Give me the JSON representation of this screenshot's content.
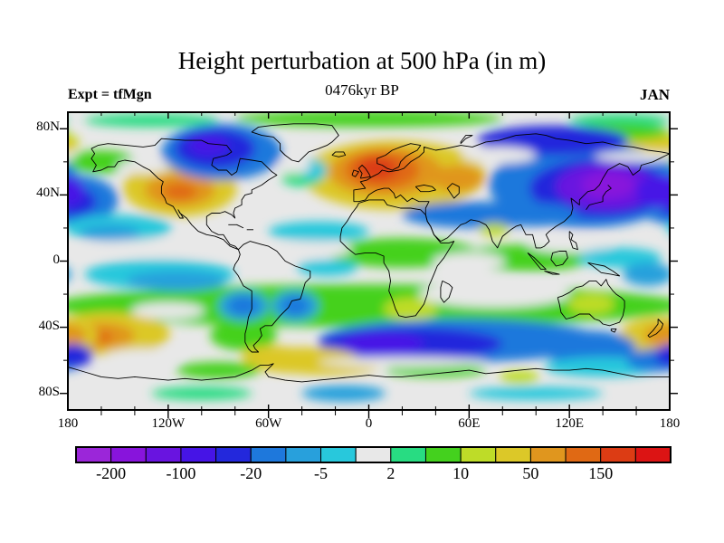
{
  "header": {
    "title": "Height perturbation at 500 hPa (in m)",
    "subtitle": "0476kyr BP",
    "experiment_label": "Expt = tfMgn",
    "month_label": "JAN"
  },
  "chart_data": {
    "type": "filled_contour_map",
    "title": "Height perturbation at 500 hPa (in m)",
    "subtitle": "0476kyr BP",
    "experiment": "tfMgn",
    "month": "JAN",
    "variable": "Geopotential height perturbation at 500 hPa",
    "units": "m",
    "projection": {
      "kind": "equirectangular",
      "lon_range": [
        -180,
        180
      ],
      "lat_range": [
        -90,
        90
      ],
      "center_lon": 0
    },
    "contour_levels": [
      -200,
      -150,
      -100,
      -50,
      -20,
      -10,
      -5,
      -2,
      2,
      5,
      10,
      20,
      50,
      100,
      150,
      200
    ],
    "palette": [
      "#9B26D9",
      "#8814DC",
      "#6914E0",
      "#4614E6",
      "#2328DC",
      "#1E78DC",
      "#28A0DC",
      "#28C8DC",
      "#E8E8E8",
      "#28DC82",
      "#44D11E",
      "#BEDC28",
      "#DCC828",
      "#E0961E",
      "#E06914",
      "#DC3C14",
      "#DC1414"
    ],
    "colorbar_labels": [
      "-200",
      "-100",
      "-20",
      "-5",
      "2",
      "10",
      "50",
      "150"
    ],
    "colorbar_label_boundary_indices": [
      1,
      3,
      5,
      7,
      9,
      11,
      13,
      15
    ],
    "x_axis": {
      "major_tick_lons": [
        -180,
        -120,
        -60,
        0,
        60,
        120,
        180
      ],
      "labels": [
        "180",
        "120W",
        "60W",
        "0",
        "60E",
        "120E",
        "180"
      ],
      "minor_step_deg": 20
    },
    "y_axis": {
      "major_tick_lats": [
        80,
        40,
        0,
        -40,
        -80
      ],
      "labels": [
        "80N",
        "40N",
        "0",
        "40S",
        "80S"
      ],
      "minor_step_deg": 20
    },
    "frame_color": "#000000",
    "background_fill": "#E8E8E8",
    "anomaly_features": [
      [
        0,
        86,
        80,
        5,
        10
      ],
      [
        -130,
        85,
        40,
        4,
        9
      ],
      [
        150,
        85,
        30,
        4,
        9
      ],
      [
        0,
        -27,
        190,
        13,
        10
      ],
      [
        -75,
        -45,
        20,
        9,
        10
      ],
      [
        20,
        5,
        45,
        9,
        10
      ],
      [
        95,
        2,
        40,
        8,
        10
      ],
      [
        -113,
        44,
        34,
        17,
        12
      ],
      [
        -113,
        43,
        21,
        10,
        13
      ],
      [
        -113,
        42,
        10,
        5,
        14
      ],
      [
        15,
        52,
        55,
        21,
        12
      ],
      [
        10,
        54,
        34,
        15,
        13
      ],
      [
        8,
        55,
        22,
        11,
        14
      ],
      [
        5,
        56,
        12,
        7,
        15
      ],
      [
        53,
        50,
        16,
        8,
        13
      ],
      [
        165,
        72,
        22,
        7,
        11
      ],
      [
        170,
        70,
        15,
        6,
        12
      ],
      [
        150,
        78,
        30,
        5,
        10
      ],
      [
        -88,
        66,
        36,
        17,
        5
      ],
      [
        -92,
        68,
        24,
        12,
        4
      ],
      [
        -96,
        70,
        12,
        6,
        3
      ],
      [
        -176,
        37,
        26,
        15,
        5
      ],
      [
        -178,
        36,
        15,
        9,
        4
      ],
      [
        130,
        46,
        58,
        26,
        5
      ],
      [
        138,
        44,
        42,
        18,
        4
      ],
      [
        142,
        45,
        30,
        14,
        2
      ],
      [
        143,
        46,
        16,
        8,
        1
      ],
      [
        175,
        42,
        15,
        10,
        3
      ],
      [
        110,
        73,
        45,
        9,
        4
      ],
      [
        65,
        28,
        45,
        8,
        5
      ],
      [
        100,
        28,
        25,
        7,
        5
      ],
      [
        -150,
        20,
        32,
        8,
        7
      ],
      [
        -155,
        17,
        18,
        5,
        6
      ],
      [
        -30,
        18,
        30,
        6,
        7
      ],
      [
        -160,
        60,
        20,
        7,
        10
      ],
      [
        -40,
        50,
        12,
        5,
        9
      ],
      [
        -33,
        55,
        8,
        6,
        7
      ],
      [
        78,
        64,
        22,
        5,
        8
      ],
      [
        -135,
        57,
        16,
        4,
        8
      ],
      [
        -45,
        57,
        10,
        4,
        8
      ],
      [
        160,
        63,
        25,
        3,
        8
      ],
      [
        -120,
        8,
        55,
        5,
        8
      ],
      [
        -35,
        7,
        25,
        5,
        8
      ],
      [
        120,
        10,
        25,
        5,
        8
      ],
      [
        60,
        0,
        22,
        5,
        8
      ],
      [
        -125,
        -8,
        45,
        9,
        7
      ],
      [
        -115,
        -12,
        30,
        6,
        6
      ],
      [
        -25,
        -4,
        18,
        5,
        7
      ],
      [
        150,
        2,
        25,
        6,
        7
      ],
      [
        167,
        -8,
        15,
        7,
        6
      ],
      [
        75,
        19,
        9,
        4,
        11
      ],
      [
        75,
        -20,
        45,
        8,
        8
      ],
      [
        25,
        -29,
        16,
        7,
        11
      ],
      [
        133,
        -26,
        14,
        6,
        11
      ],
      [
        -155,
        -44,
        36,
        13,
        12
      ],
      [
        -160,
        -45,
        20,
        8,
        13
      ],
      [
        -163,
        -46,
        10,
        4,
        14
      ],
      [
        174,
        -45,
        24,
        11,
        12
      ],
      [
        178,
        -45,
        13,
        7,
        13
      ],
      [
        -120,
        -30,
        22,
        5,
        8
      ],
      [
        -75,
        -27,
        15,
        9,
        6
      ],
      [
        -75,
        -27,
        9,
        6,
        5
      ],
      [
        -44,
        -27,
        14,
        9,
        6
      ],
      [
        -44,
        -27,
        8,
        6,
        5
      ],
      [
        55,
        -48,
        85,
        13,
        5
      ],
      [
        25,
        -50,
        55,
        10,
        4
      ],
      [
        8,
        -50,
        25,
        7,
        3
      ],
      [
        130,
        -52,
        30,
        10,
        5
      ],
      [
        -58,
        -57,
        18,
        6,
        12
      ],
      [
        -40,
        -60,
        35,
        8,
        12
      ],
      [
        -25,
        -63,
        32,
        6,
        12
      ],
      [
        -90,
        -66,
        25,
        5,
        10
      ],
      [
        40,
        -66,
        30,
        4,
        10
      ],
      [
        90,
        -70,
        12,
        4,
        11
      ],
      [
        140,
        -64,
        35,
        6,
        7
      ],
      [
        172,
        -60,
        18,
        7,
        5
      ],
      [
        -177,
        -57,
        12,
        7,
        4
      ],
      [
        20,
        -61,
        50,
        3,
        8
      ],
      [
        -135,
        -57,
        22,
        4,
        8
      ],
      [
        -100,
        -80,
        30,
        4,
        9
      ],
      [
        -15,
        -80,
        25,
        5,
        6
      ],
      [
        100,
        -80,
        40,
        4,
        7
      ]
    ]
  }
}
